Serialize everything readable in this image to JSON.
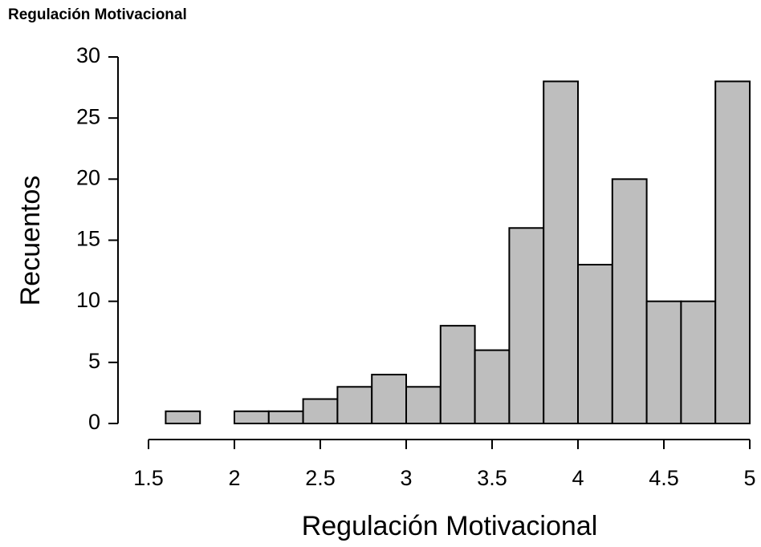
{
  "chart_data": {
    "type": "histogram",
    "title": "Regulación Motivacional",
    "x_label": "Regulación Motivacional",
    "y_label": "Recuentos",
    "bins": [
      1.6,
      1.8,
      2.0,
      2.2,
      2.4,
      2.6,
      2.8,
      3.0,
      3.2,
      3.4,
      3.6,
      3.8,
      4.0,
      4.2,
      4.4,
      4.6,
      4.8,
      5.0
    ],
    "values": [
      1,
      0,
      1,
      1,
      2,
      3,
      4,
      3,
      8,
      6,
      16,
      28,
      13,
      20,
      10,
      10,
      28
    ],
    "color": "#bebebe",
    "xlim": [
      1.5,
      5
    ],
    "xticks": [
      1.5,
      2,
      2.5,
      3,
      3.5,
      4,
      4.5,
      5
    ],
    "ylim": [
      0,
      30
    ],
    "yticks": [
      0,
      5,
      10,
      15,
      20,
      25,
      30
    ]
  }
}
